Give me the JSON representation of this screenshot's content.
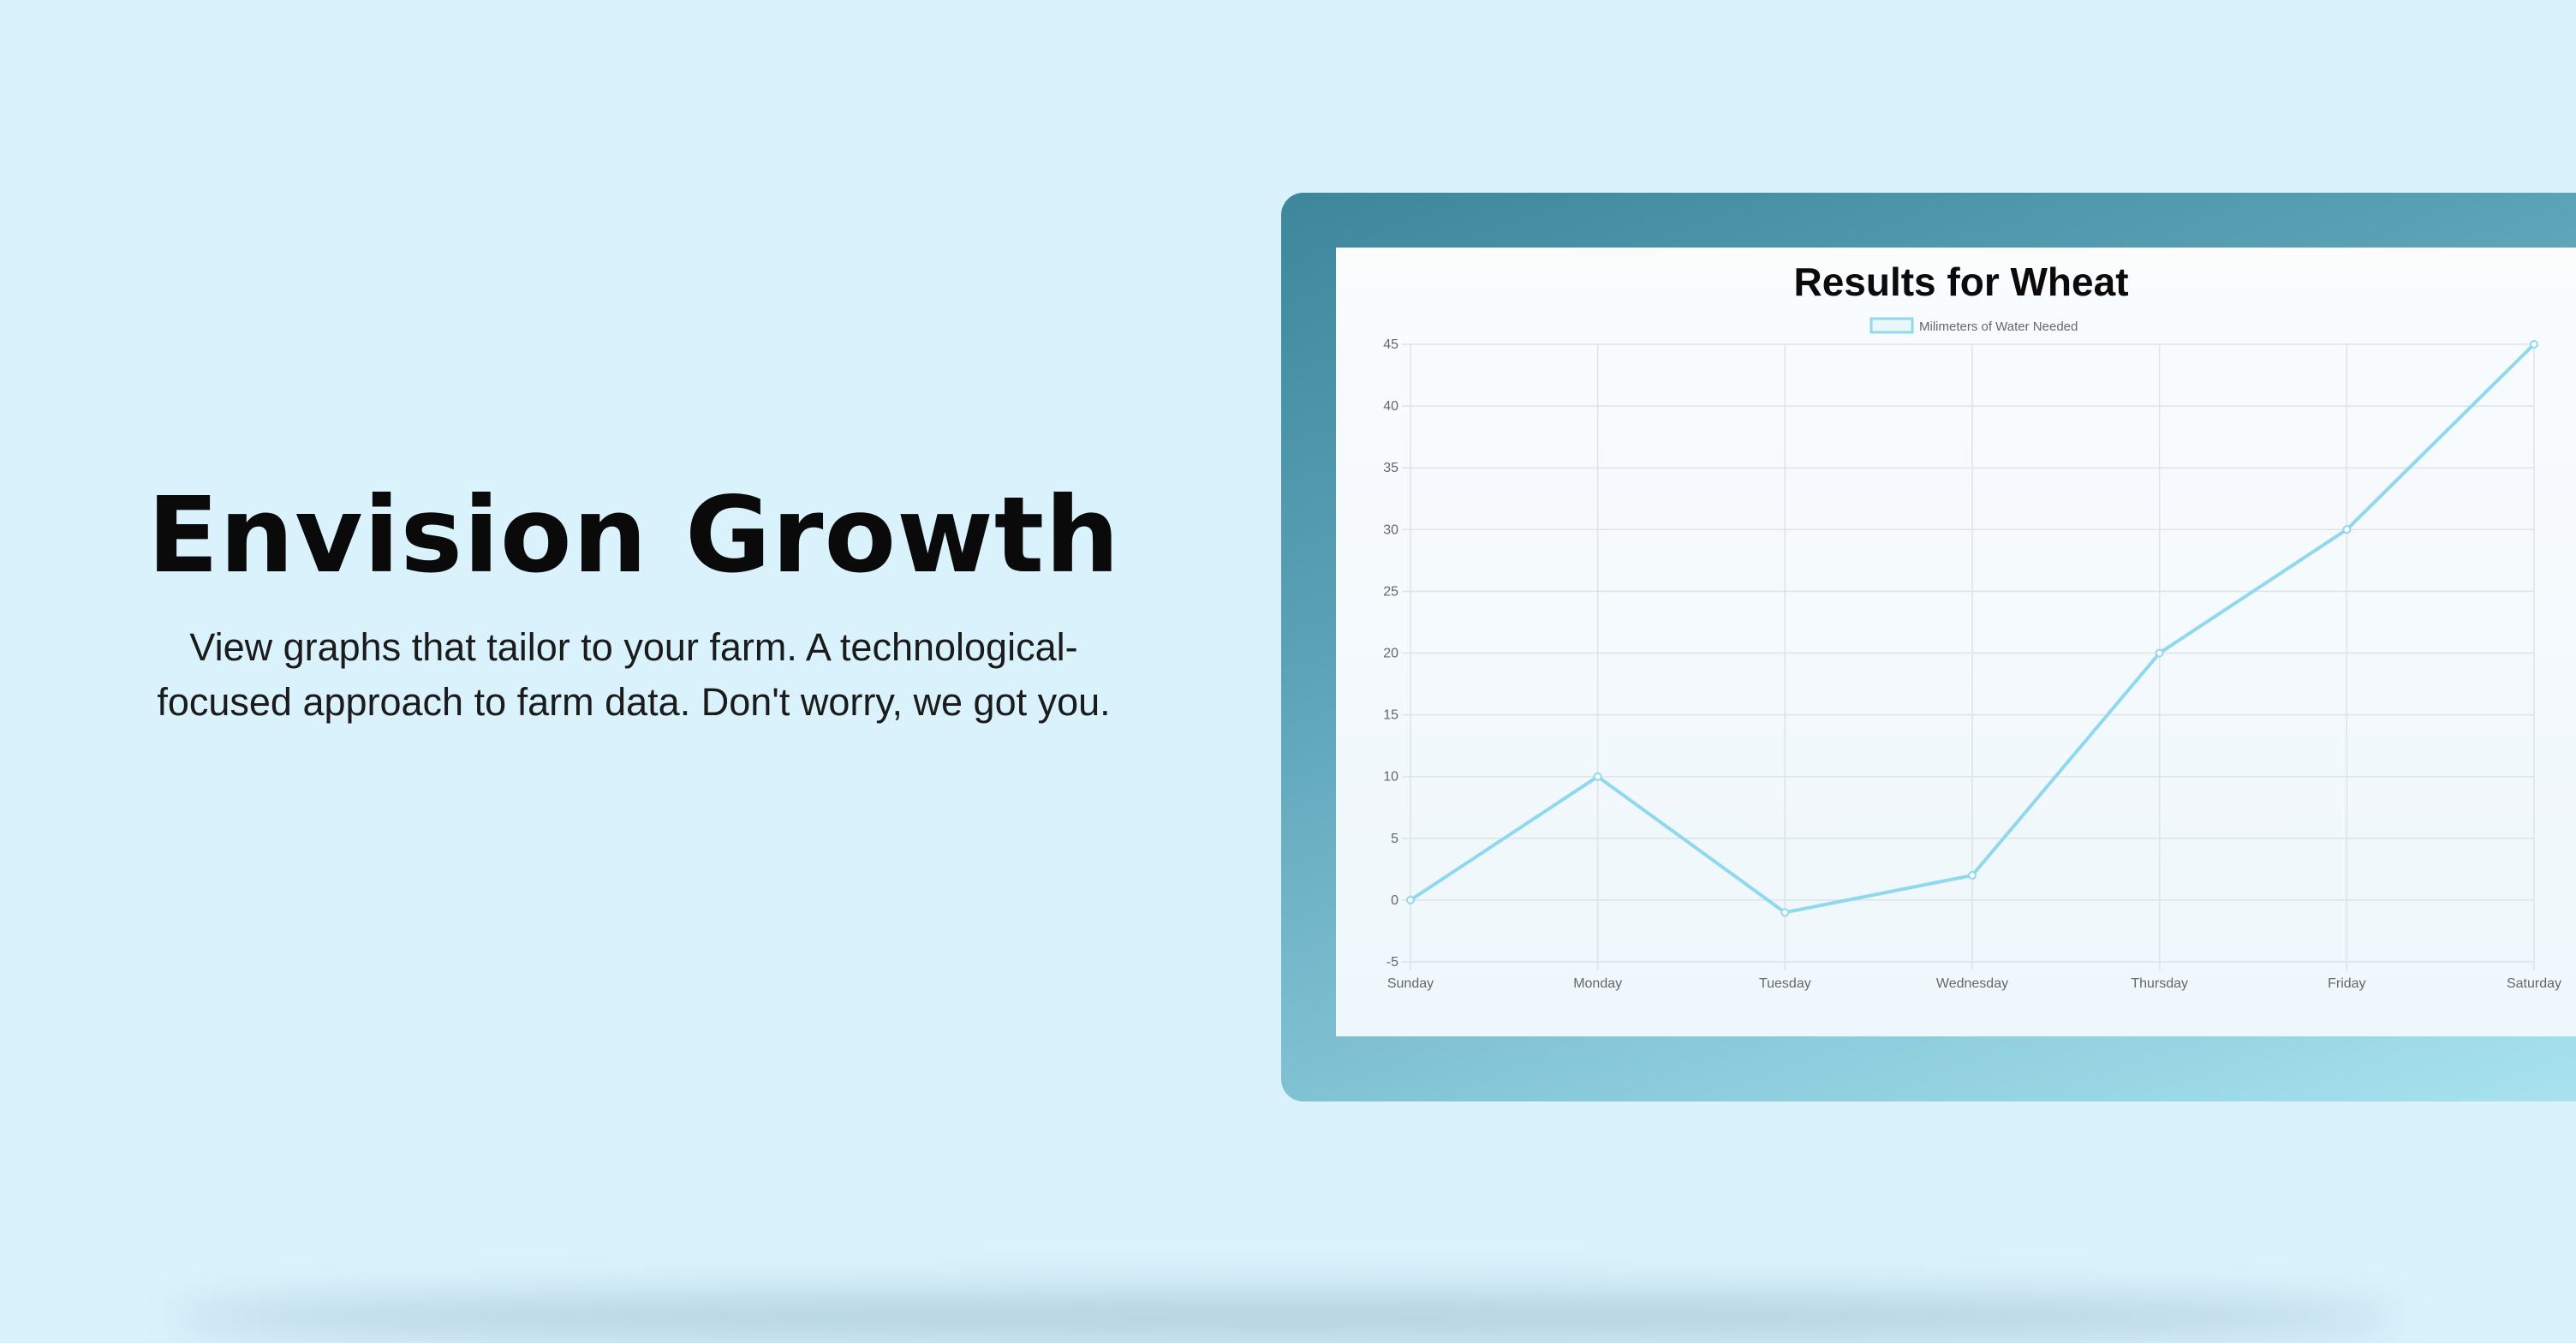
{
  "hero": {
    "title": "Envision Growth",
    "subtitle": "View graphs that tailor to your farm. A technological-focused approach to farm data. Don't worry, we got you."
  },
  "colors": {
    "background": "#d9f2fc",
    "series_line": "#8fd8ee",
    "frame_gradient_start": "#3d869b",
    "frame_gradient_end": "#a9e3ef"
  },
  "chart_data": {
    "type": "line",
    "title": "Results for Wheat",
    "categories": [
      "Sunday",
      "Monday",
      "Tuesday",
      "Wednesday",
      "Thursday",
      "Friday",
      "Saturday"
    ],
    "series": [
      {
        "name": "Milimeters of Water Needed",
        "values": [
          0,
          10,
          -1,
          2,
          20,
          30,
          45
        ]
      }
    ],
    "y_ticks": [
      "45",
      "40",
      "35",
      "30",
      "25",
      "20",
      "15",
      "10",
      "5",
      "0",
      "-5"
    ],
    "ylim": [
      -5,
      45
    ],
    "y_step": 5,
    "grid": true,
    "legend": "top"
  }
}
